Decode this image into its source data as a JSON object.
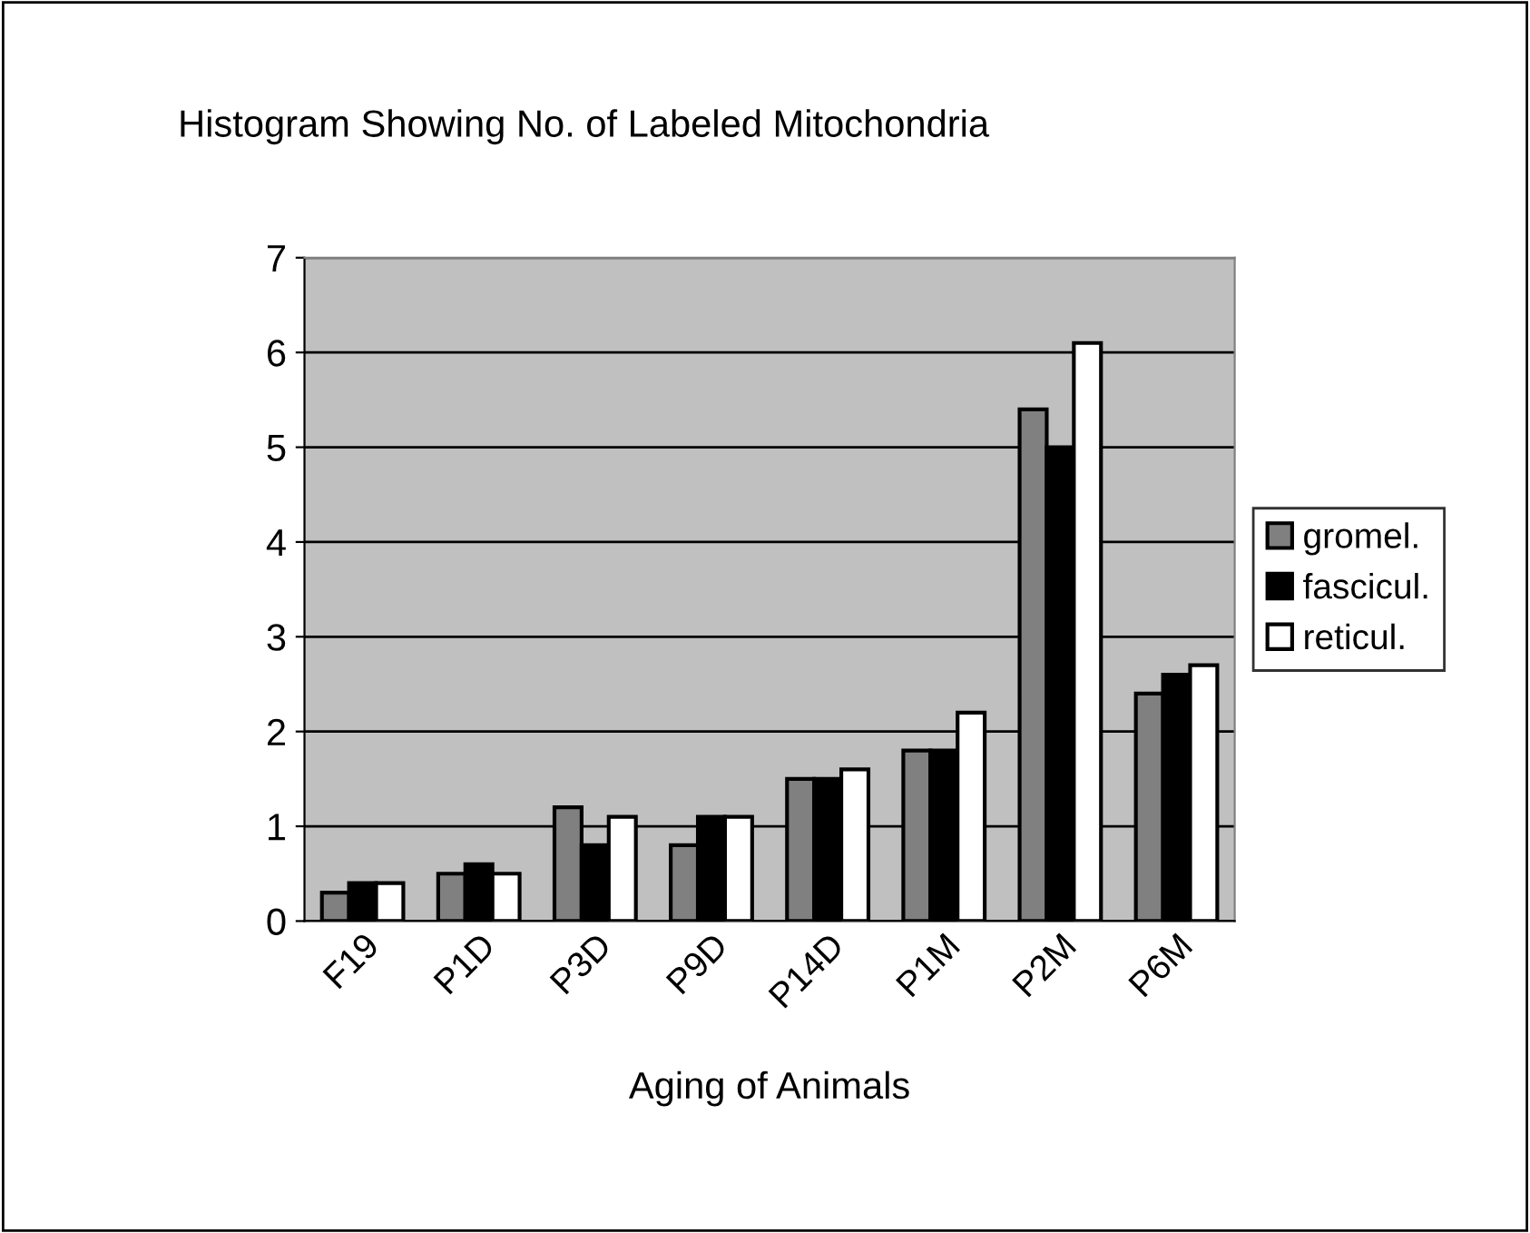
{
  "chart_data": {
    "type": "bar",
    "title": "Histogram Showing No. of Labeled Mitochondria",
    "xlabel": "Aging of Animals",
    "categories": [
      "F19",
      "P1D",
      "P3D",
      "P9D",
      "P14D",
      "P1M",
      "P2M",
      "P6M"
    ],
    "series": [
      {
        "name": "gromel.",
        "color": "#808080",
        "values": [
          0.3,
          0.5,
          1.2,
          0.8,
          1.5,
          1.8,
          5.4,
          2.4
        ]
      },
      {
        "name": "fascicul.",
        "color": "#000000",
        "values": [
          0.4,
          0.6,
          0.8,
          1.1,
          1.5,
          1.8,
          5.0,
          2.6
        ]
      },
      {
        "name": "reticul.",
        "color": "#ffffff",
        "values": [
          0.4,
          0.5,
          1.1,
          1.1,
          1.6,
          2.2,
          6.1,
          2.7
        ]
      }
    ],
    "ylim": [
      0,
      7
    ],
    "yticks": [
      0,
      1,
      2,
      3,
      4,
      5,
      6,
      7
    ],
    "grid": "y",
    "legend": "right"
  }
}
